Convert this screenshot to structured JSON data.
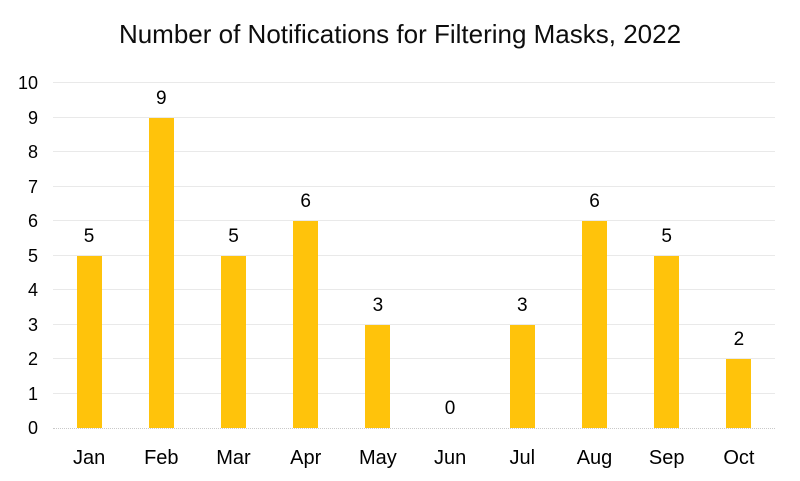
{
  "chart_data": {
    "type": "bar",
    "title": "Number of Notifications for Filtering Masks, 2022",
    "categories": [
      "Jan",
      "Feb",
      "Mar",
      "Apr",
      "May",
      "Jun",
      "Jul",
      "Aug",
      "Sep",
      "Oct"
    ],
    "values": [
      5,
      9,
      5,
      6,
      3,
      0,
      3,
      6,
      5,
      2
    ],
    "xlabel": "",
    "ylabel": "",
    "ylim": [
      0,
      10
    ],
    "ytick_step": 1,
    "yticks": [
      0,
      1,
      2,
      3,
      4,
      5,
      6,
      7,
      8,
      9,
      10
    ],
    "grid": true,
    "legend": false,
    "data_labels_visible": true,
    "colors": {
      "bar": "#FFC30B",
      "gridline": "#E9E9E9",
      "axis_line": "#C9C9C9",
      "text": "#000000",
      "title_text": "#0D0D0D",
      "background": "#FFFFFF"
    }
  }
}
